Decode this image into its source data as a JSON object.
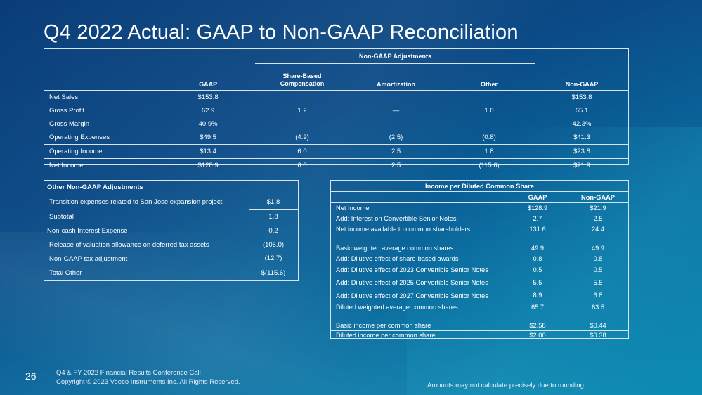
{
  "title": "Q4 2022 Actual: GAAP to Non-GAAP Reconciliation",
  "main_table": {
    "group_header": "Non-GAAP Adjustments",
    "columns": [
      "GAAP",
      "Share-Based Compensation",
      "Amortization",
      "Other",
      "Non-GAAP"
    ],
    "rows": [
      {
        "label": "Net Sales",
        "values": [
          "$153.8",
          "",
          "",
          "",
          "$153.8"
        ]
      },
      {
        "label": "Gross Profit",
        "values": [
          "62.9",
          "1.2",
          "—",
          "1.0",
          "65.1"
        ]
      },
      {
        "label": "Gross Margin",
        "values": [
          "40.9%",
          "",
          "",
          "",
          "42.3%"
        ]
      },
      {
        "label": "Operating Expenses",
        "values": [
          "$49.5",
          "(4.9)",
          "(2.5)",
          "(0.8)",
          "$41.3"
        ]
      },
      {
        "label": "Operating Income",
        "values": [
          "$13.4",
          "6.0",
          "2.5",
          "1.8",
          "$23.8"
        ]
      },
      {
        "label": "Net Income",
        "values": [
          "$128.9",
          "6.0",
          "2.5",
          "(115.6)",
          "$21.9"
        ]
      }
    ]
  },
  "other_table": {
    "header": "Other Non-GAAP Adjustments",
    "rows": [
      {
        "label": "Transition expenses related to San Jose expansion project",
        "value": "$1.8"
      },
      {
        "label": "Subtotal",
        "value": "1.8"
      },
      {
        "label": "Non-cash Interest Expense",
        "value": "0.2"
      },
      {
        "label": "Release of valuation allowance on deferred tax assets",
        "value": "(105.0)"
      },
      {
        "label": "Non-GAAP tax adjustment",
        "value": "(12.7)"
      },
      {
        "label": "Total Other",
        "value": "$(115.6)"
      }
    ]
  },
  "eps_table": {
    "header": "Income per Diluted Common Share",
    "columns": [
      "GAAP",
      "Non-GAAP"
    ],
    "rows": [
      {
        "label": "Net Income",
        "gaap": "$128.9",
        "nongaap": "$21.9"
      },
      {
        "label": "Add: Interest on Convertible Senior Notes",
        "gaap": "2.7",
        "nongaap": "2.5"
      },
      {
        "label": "Net income available to common shareholders",
        "gaap": "131.6",
        "nongaap": "24.4"
      },
      {
        "label": "Basic weighted average common shares",
        "gaap": "49.9",
        "nongaap": "49.9"
      },
      {
        "label": "Add: Dilutive effect of share-based awards",
        "gaap": "0.8",
        "nongaap": "0.8"
      },
      {
        "label": "Add: Dilutive effect of 2023 Convertible Senior Notes",
        "gaap": "0.5",
        "nongaap": "0.5"
      },
      {
        "label": "Add: Dilutive effect of 2025 Convertible Senior Notes",
        "gaap": "5.5",
        "nongaap": "5.5"
      },
      {
        "label": "Add: Dilutive effect of 2027 Convertible Senior Notes",
        "gaap": "8.9",
        "nongaap": "6.8"
      },
      {
        "label": "Diluted weighted average common shares",
        "gaap": "65.7",
        "nongaap": "63.5"
      },
      {
        "label": "Basic income per common share",
        "gaap": "$2.58",
        "nongaap": "$0.44"
      },
      {
        "label": "Diluted income per common share",
        "gaap": "$2.00",
        "nongaap": "$0.38"
      }
    ]
  },
  "footer": {
    "page_number": "26",
    "line1": "Q4 & FY 2022 Financial Results Conference Call",
    "line2": "Copyright © 2023 Veeco Instruments Inc. All Rights Reserved.",
    "note": "Amounts may not calculate precisely due to rounding."
  }
}
